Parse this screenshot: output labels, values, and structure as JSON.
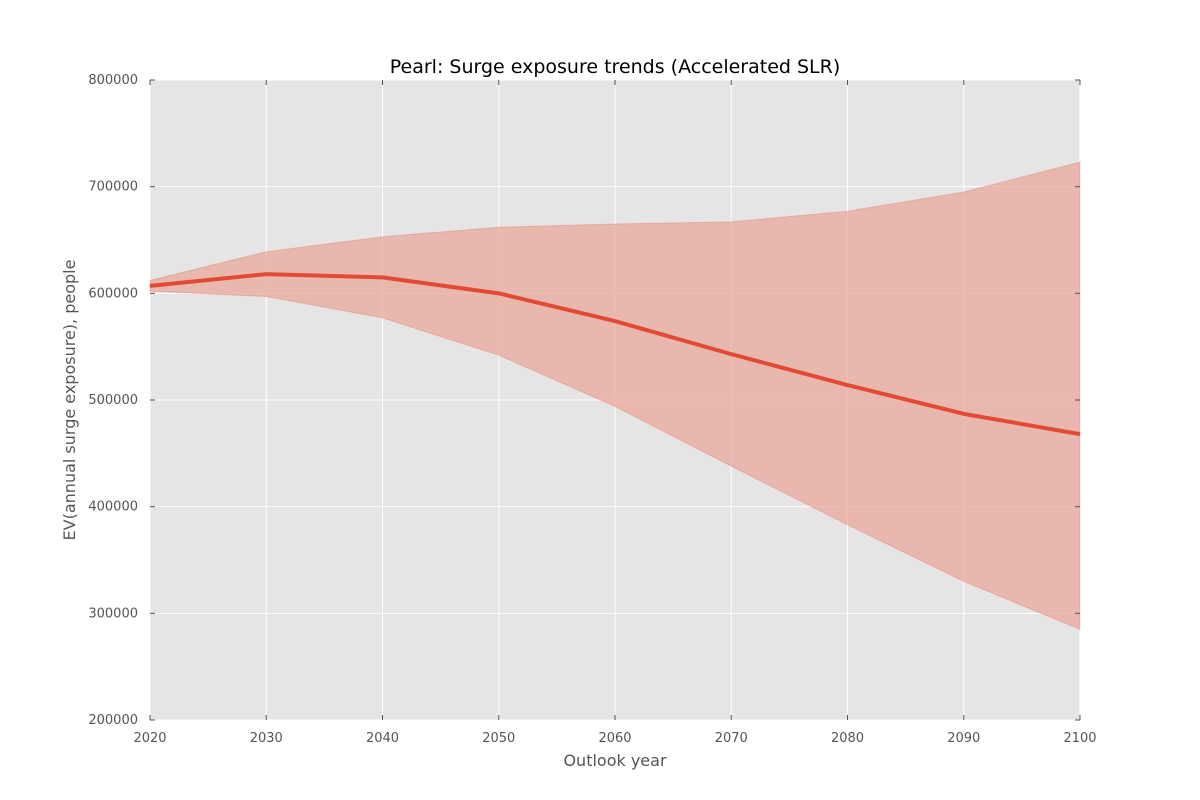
{
  "chart_data": {
    "type": "area",
    "title": "Pearl: Surge exposure trends (Accelerated SLR)",
    "xlabel": "Outlook year",
    "ylabel": "EV(annual surge exposure), people",
    "xlim": [
      2020,
      2100
    ],
    "ylim": [
      200000,
      800000
    ],
    "xticks": [
      2020,
      2030,
      2040,
      2050,
      2060,
      2070,
      2080,
      2090,
      2100
    ],
    "yticks": [
      200000,
      300000,
      400000,
      500000,
      600000,
      700000,
      800000
    ],
    "x": [
      2020,
      2030,
      2040,
      2050,
      2060,
      2070,
      2080,
      2090,
      2100
    ],
    "grid": true,
    "legend": "none",
    "series": [
      {
        "values": [
          607000,
          618000,
          615000,
          600000,
          574000,
          543000,
          514000,
          487000,
          468000
        ],
        "lower": [
          602000,
          597000,
          577000,
          542000,
          494000,
          438000,
          383000,
          330000,
          285000
        ],
        "upper": [
          612000,
          639000,
          653000,
          662000,
          665000,
          667000,
          677000,
          695000,
          723000
        ],
        "color": "#e24a33",
        "band_color": "#e8a89c"
      }
    ],
    "background_color": "#e5e5e5"
  }
}
